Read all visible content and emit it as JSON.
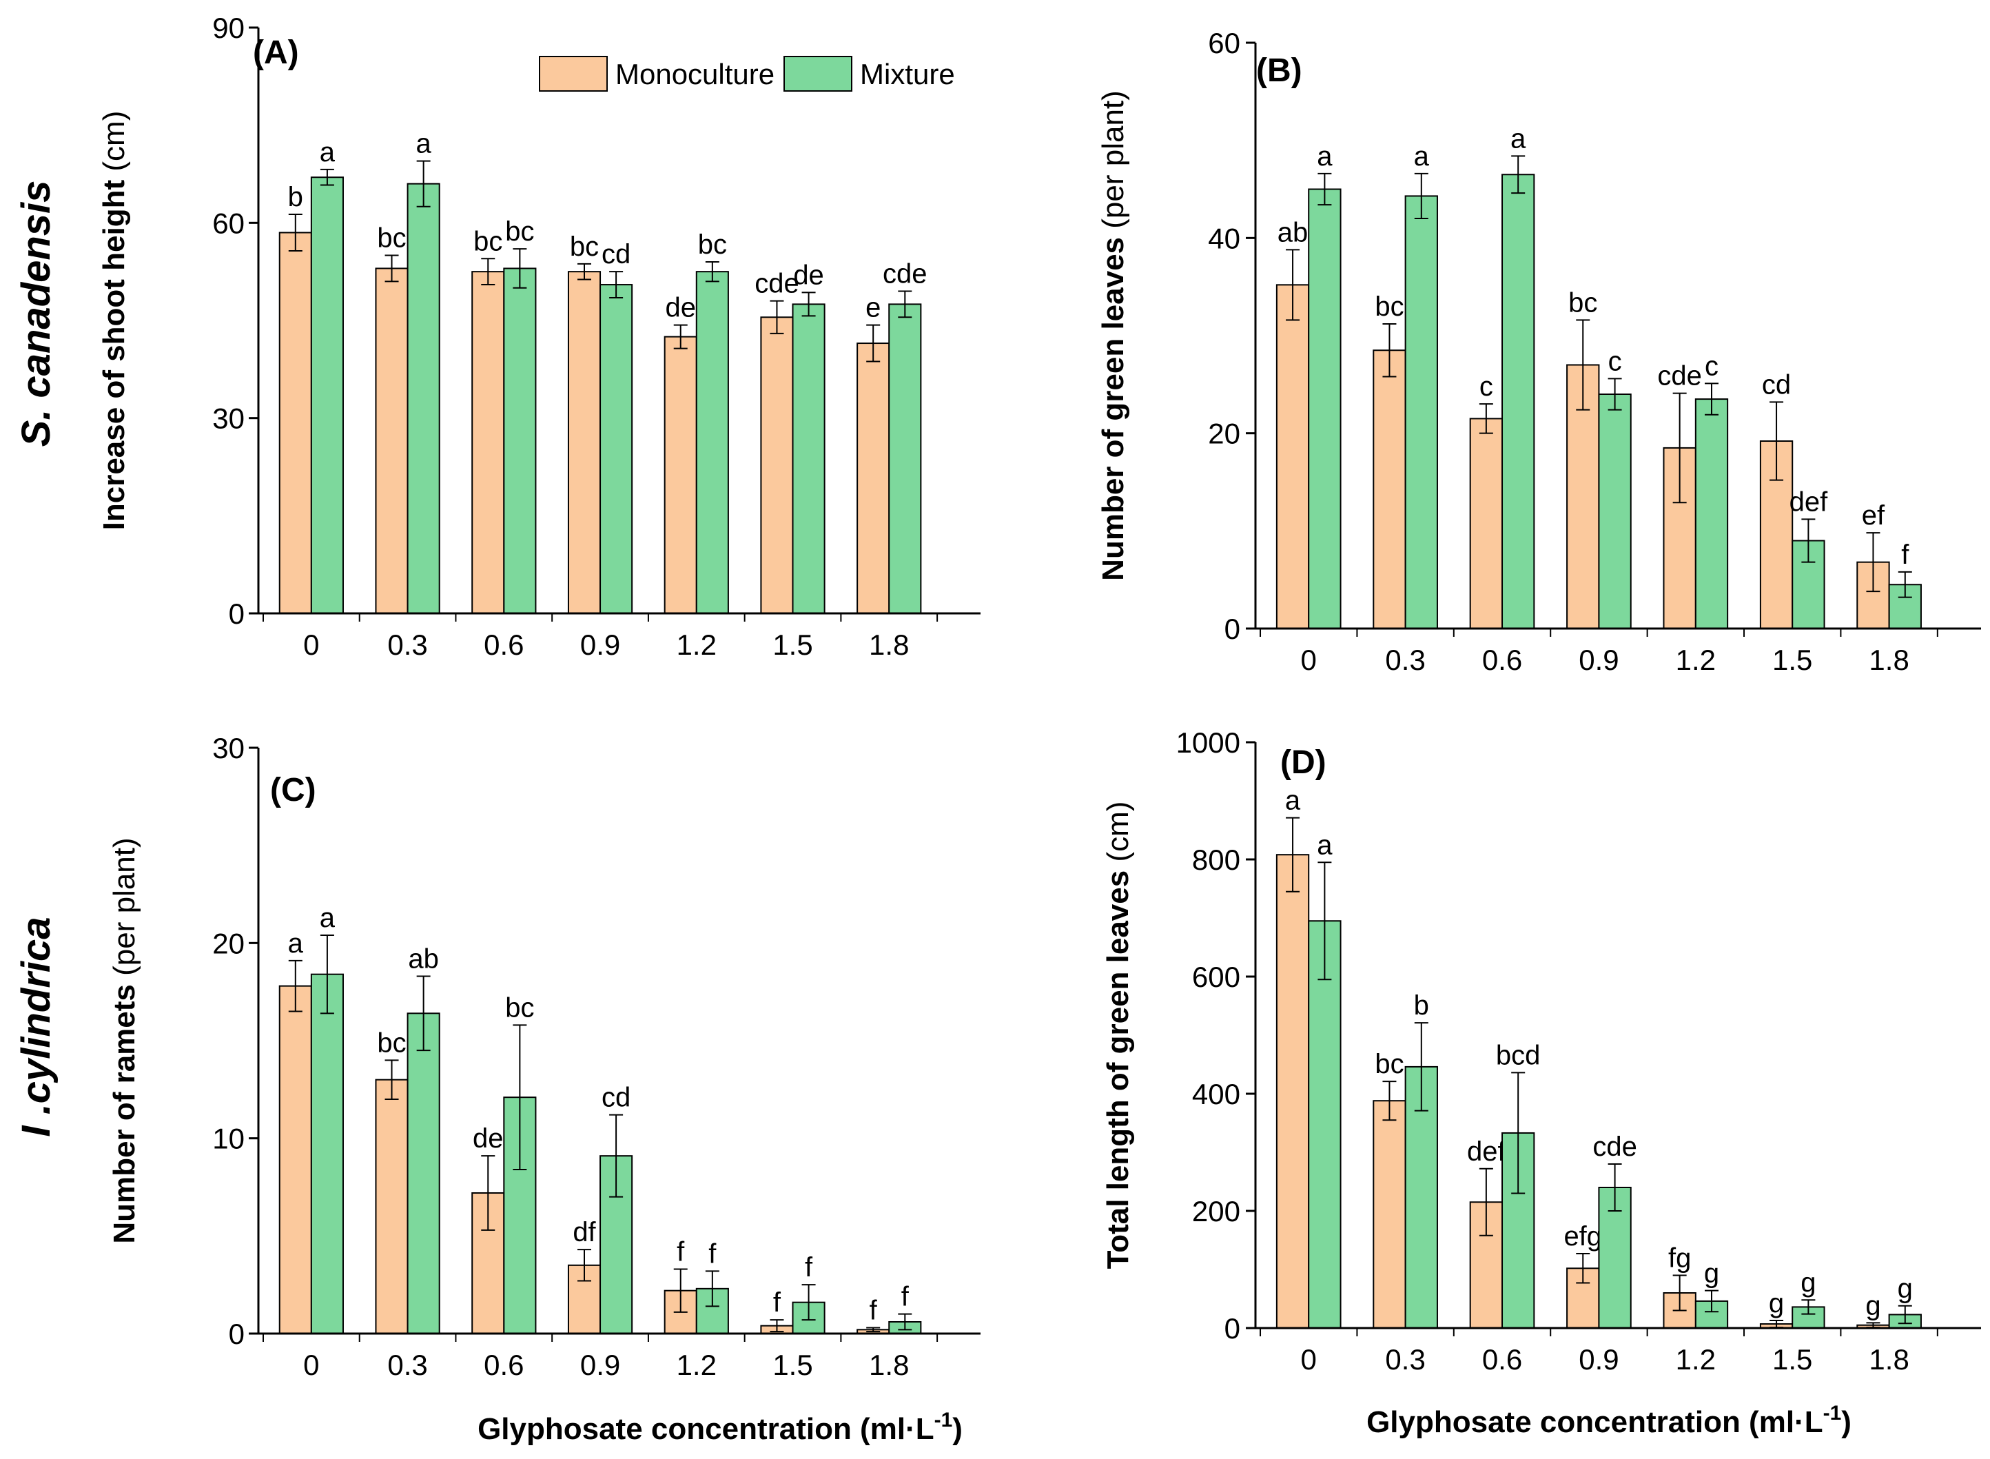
{
  "colors": {
    "monoculture": "#FBC99D",
    "mixture": "#7DD89C",
    "axis": "#000000"
  },
  "legend": {
    "monoculture": "Monoculture",
    "mixture": "Mixture"
  },
  "row_labels": {
    "top": "S. canadensis",
    "bottom": "I .cylindrica"
  },
  "x_axis_label": {
    "main": "Glyphosate concentration (ml·L",
    "sup": "-1",
    "close": ")"
  },
  "chart_data": [
    {
      "type": "bar",
      "panel": "(A)",
      "categories": [
        "0",
        "0.3",
        "0.6",
        "0.9",
        "1.2",
        "1.5",
        "1.8"
      ],
      "ylabel": "Increase of shoot height",
      "ylabel_unit": "(cm)",
      "ylim": [
        0,
        90
      ],
      "yticks": [
        0,
        30,
        60,
        90
      ],
      "series": [
        {
          "name": "Monoculture",
          "values": [
            58.5,
            53,
            52.5,
            52.5,
            42.5,
            45.5,
            41.5
          ],
          "errors": [
            2.8,
            2.0,
            2.0,
            1.2,
            1.8,
            2.5,
            2.8
          ],
          "letters": [
            "b",
            "bc",
            "bc",
            "bc",
            "de",
            "cde",
            "e"
          ]
        },
        {
          "name": "Mixture",
          "values": [
            67,
            66,
            53,
            50.5,
            52.5,
            47.5,
            47.5
          ],
          "errors": [
            1.2,
            3.5,
            3.0,
            2.0,
            1.5,
            1.8,
            2.0
          ],
          "letters": [
            "a",
            "a",
            "bc",
            "cd",
            "bc",
            "de",
            "cde"
          ]
        }
      ]
    },
    {
      "type": "bar",
      "panel": "(B)",
      "categories": [
        "0",
        "0.3",
        "0.6",
        "0.9",
        "1.2",
        "1.5",
        "1.8"
      ],
      "ylabel": "Number of green leaves",
      "ylabel_unit": "(per plant)",
      "ylim": [
        0,
        60
      ],
      "yticks": [
        0,
        20,
        40,
        60
      ],
      "series": [
        {
          "name": "Monoculture",
          "values": [
            35.2,
            28.5,
            21.5,
            27.0,
            18.5,
            19.2,
            6.8
          ],
          "errors": [
            3.6,
            2.7,
            1.5,
            4.6,
            5.6,
            4.0,
            3.0
          ],
          "letters": [
            "ab",
            "bc",
            "c",
            "bc",
            "cde",
            "cd",
            "ef"
          ]
        },
        {
          "name": "Mixture",
          "values": [
            45.0,
            44.3,
            46.5,
            24.0,
            23.5,
            9.0,
            4.5
          ],
          "errors": [
            1.6,
            2.3,
            1.9,
            1.6,
            1.6,
            2.2,
            1.3
          ],
          "letters": [
            "a",
            "a",
            "a",
            "c",
            "c",
            "def",
            "f"
          ]
        }
      ]
    },
    {
      "type": "bar",
      "panel": "(C)",
      "categories": [
        "0",
        "0.3",
        "0.6",
        "0.9",
        "1.2",
        "1.5",
        "1.8"
      ],
      "ylabel": "Number of ramets",
      "ylabel_unit": "(per plant)",
      "ylim": [
        0,
        30
      ],
      "yticks": [
        0,
        10,
        20,
        30
      ],
      "series": [
        {
          "name": "Monoculture",
          "values": [
            17.8,
            13.0,
            7.2,
            3.5,
            2.2,
            0.4,
            0.2
          ],
          "errors": [
            1.3,
            1.0,
            1.9,
            0.8,
            1.1,
            0.3,
            0.1
          ],
          "letters": [
            "a",
            "bc",
            "de",
            "df",
            "f",
            "f",
            "f"
          ]
        },
        {
          "name": "Mixture",
          "values": [
            18.4,
            16.4,
            12.1,
            9.1,
            2.3,
            1.6,
            0.6
          ],
          "errors": [
            2.0,
            1.9,
            3.7,
            2.1,
            0.9,
            0.9,
            0.4
          ],
          "letters": [
            "a",
            "ab",
            "bc",
            "cd",
            "f",
            "f",
            "f"
          ]
        }
      ]
    },
    {
      "type": "bar",
      "panel": "(D)",
      "categories": [
        "0",
        "0.3",
        "0.6",
        "0.9",
        "1.2",
        "1.5",
        "1.8"
      ],
      "ylabel": "Total length of green leaves",
      "ylabel_unit": "(cm)",
      "ylim": [
        0,
        1000
      ],
      "yticks": [
        0,
        200,
        400,
        600,
        800,
        1000
      ],
      "series": [
        {
          "name": "Monoculture",
          "values": [
            808,
            388,
            215,
            102,
            60,
            7,
            5
          ],
          "errors": [
            63,
            33,
            57,
            25,
            30,
            6,
            4
          ],
          "letters": [
            "a",
            "bc",
            "def",
            "efg",
            "fg",
            "g",
            "g"
          ]
        },
        {
          "name": "Mixture",
          "values": [
            695,
            446,
            333,
            240,
            46,
            36,
            23
          ],
          "errors": [
            100,
            75,
            103,
            40,
            18,
            12,
            15
          ],
          "letters": [
            "a",
            "b",
            "bcd",
            "cde",
            "g",
            "g",
            "g"
          ]
        }
      ]
    }
  ]
}
